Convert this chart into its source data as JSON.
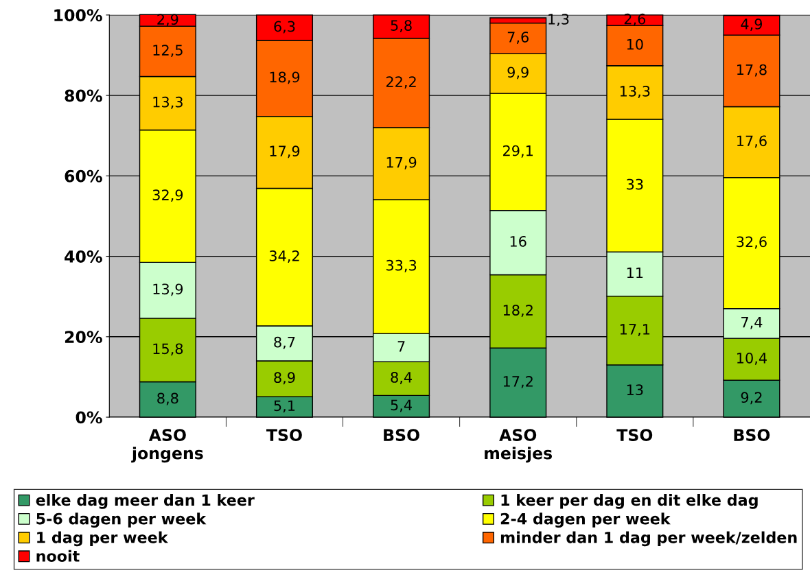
{
  "chart_data": {
    "type": "bar",
    "stacked": true,
    "categories": [
      "ASO\njongens",
      "TSO",
      "BSO",
      "ASO\nmeisjes",
      "TSO",
      "BSO"
    ],
    "series": [
      {
        "name": "elke dag meer dan 1 keer",
        "color": "#339966",
        "values": [
          8.8,
          5.1,
          5.4,
          17.2,
          13,
          9.2
        ],
        "value_labels": [
          "8,8",
          "5,1",
          "5,4",
          "17,2",
          "13",
          "9,2"
        ]
      },
      {
        "name": "1 keer per dag en dit elke dag",
        "color": "#99cc00",
        "values": [
          15.8,
          8.9,
          8.4,
          18.2,
          17.1,
          10.4
        ],
        "value_labels": [
          "15,8",
          "8,9",
          "8,4",
          "18,2",
          "17,1",
          "10,4"
        ]
      },
      {
        "name": "5-6 dagen per week",
        "color": "#ccffcc",
        "values": [
          13.9,
          8.7,
          7,
          16,
          11,
          7.4
        ],
        "value_labels": [
          "13,9",
          "8,7",
          "7",
          "16",
          "11",
          "7,4"
        ]
      },
      {
        "name": "2-4 dagen per week",
        "color": "#ffff00",
        "values": [
          32.9,
          34.2,
          33.3,
          29.1,
          33,
          32.6
        ],
        "value_labels": [
          "32,9",
          "34,2",
          "33,3",
          "29,1",
          "33",
          "32,6"
        ]
      },
      {
        "name": "1 dag per week",
        "color": "#ffcc00",
        "values": [
          13.3,
          17.9,
          17.9,
          9.9,
          13.3,
          17.6
        ],
        "value_labels": [
          "13,3",
          "17,9",
          "17,9",
          "9,9",
          "13,3",
          "17,6"
        ]
      },
      {
        "name": "minder dan 1 dag per week/zelden",
        "color": "#ff6600",
        "values": [
          12.5,
          18.9,
          22.2,
          7.6,
          10,
          17.8
        ],
        "value_labels": [
          "12,5",
          "18,9",
          "22,2",
          "7,6",
          "10",
          "17,8"
        ]
      },
      {
        "name": "nooit",
        "color": "#ff0000",
        "values": [
          2.9,
          6.3,
          5.8,
          1.3,
          2.6,
          4.9
        ],
        "value_labels": [
          "2,9",
          "6,3",
          "5,8",
          "1,3",
          "2,6",
          "4,9"
        ]
      }
    ],
    "ylim": [
      0,
      100
    ],
    "yticks": [
      {
        "value": 0,
        "label": "0%"
      },
      {
        "value": 20,
        "label": "20%"
      },
      {
        "value": 40,
        "label": "40%"
      },
      {
        "value": 60,
        "label": "60%"
      },
      {
        "value": 80,
        "label": "80%"
      },
      {
        "value": 100,
        "label": "100%"
      }
    ],
    "grid": "y",
    "legend": "bottom"
  }
}
